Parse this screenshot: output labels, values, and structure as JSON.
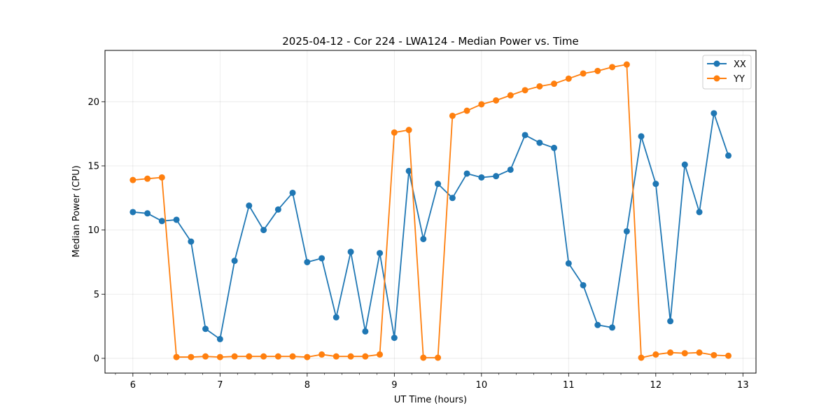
{
  "chart_data": {
    "type": "line",
    "title": "2025-04-12 - Cor 224 - LWA124 - Median Power vs. Time",
    "xlabel": "UT Time (hours)",
    "ylabel": "Median Power (CPU)",
    "xlim": [
      5.68,
      13.15
    ],
    "ylim": [
      -1.15,
      24.0
    ],
    "xticks": [
      6,
      7,
      8,
      9,
      10,
      11,
      12,
      13
    ],
    "yticks": [
      0,
      5,
      10,
      15,
      20
    ],
    "grid": true,
    "legend_position": "top-right",
    "x": [
      6.0,
      6.167,
      6.333,
      6.5,
      6.667,
      6.833,
      7.0,
      7.167,
      7.333,
      7.5,
      7.667,
      7.833,
      8.0,
      8.167,
      8.333,
      8.5,
      8.667,
      8.833,
      9.0,
      9.167,
      9.333,
      9.5,
      9.667,
      9.833,
      10.0,
      10.167,
      10.333,
      10.5,
      10.667,
      10.833,
      11.0,
      11.167,
      11.333,
      11.5,
      11.667,
      11.833,
      12.0,
      12.167,
      12.333,
      12.5,
      12.667,
      12.833
    ],
    "series": [
      {
        "name": "XX",
        "color": "#1f77b4",
        "values": [
          11.4,
          11.3,
          10.7,
          10.8,
          9.1,
          2.3,
          1.5,
          7.6,
          11.9,
          10.0,
          11.6,
          12.9,
          7.5,
          7.8,
          3.2,
          8.3,
          2.1,
          8.2,
          1.6,
          14.6,
          9.3,
          13.6,
          12.5,
          14.4,
          14.1,
          14.2,
          14.7,
          17.4,
          16.8,
          16.4,
          7.4,
          5.7,
          2.6,
          2.4,
          9.9,
          17.3,
          13.6,
          2.9,
          15.1,
          11.4,
          19.1,
          15.8
        ]
      },
      {
        "name": "YY",
        "color": "#ff7f0e",
        "values": [
          13.9,
          14.0,
          14.1,
          0.1,
          0.1,
          0.15,
          0.1,
          0.15,
          0.15,
          0.15,
          0.15,
          0.15,
          0.1,
          0.3,
          0.15,
          0.15,
          0.15,
          0.3,
          17.6,
          17.8,
          0.05,
          0.05,
          18.9,
          19.3,
          19.8,
          20.1,
          20.5,
          20.9,
          21.2,
          21.4,
          21.8,
          22.2,
          22.4,
          22.7,
          22.9,
          0.05,
          0.3,
          0.45,
          0.4,
          0.45,
          0.25,
          0.2
        ]
      }
    ]
  }
}
